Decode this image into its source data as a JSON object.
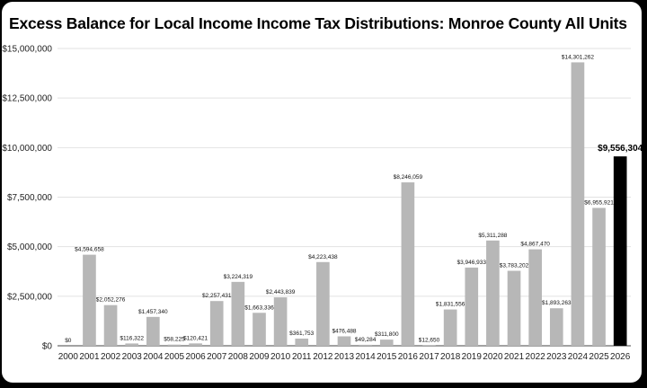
{
  "chart_data": {
    "type": "bar",
    "title": "Excess Balance for Local Income Income Tax Distributions: Monroe County All Units",
    "xlabel": "",
    "ylabel": "",
    "ylim": [
      0,
      15000000
    ],
    "yticks": [
      "$0",
      "$2,500,000",
      "$5,000,000",
      "$7,500,000",
      "$10,000,000",
      "$12,500,000",
      "$15,000,000"
    ],
    "grid": true,
    "legend": "none",
    "categories": [
      "2000",
      "2001",
      "2002",
      "2003",
      "2004",
      "2005",
      "2006",
      "2007",
      "2008",
      "2009",
      "2010",
      "2011",
      "2012",
      "2013",
      "2014",
      "2015",
      "2016",
      "2017",
      "2018",
      "2019",
      "2020",
      "2021",
      "2022",
      "2023",
      "2024",
      "2025",
      "2026"
    ],
    "values": [
      0,
      4594658,
      2052276,
      116322,
      1457340,
      58225,
      120421,
      2257431,
      3224319,
      1663336,
      2443839,
      361753,
      4223438,
      476488,
      49284,
      311800,
      8246059,
      12650,
      1831556,
      3946933,
      5311288,
      3783202,
      4867470,
      1893263,
      14301262,
      6955921,
      9556304
    ],
    "data_labels": [
      "$0",
      "$4,594,658",
      "$2,052,276",
      "$116,322",
      "$1,457,340",
      "$58,225",
      "$120,421",
      "$2,257,431",
      "$3,224,319",
      "$1,663,336",
      "$2,443,839",
      "$361,753",
      "$4,223,438",
      "$476,488",
      "$49,284",
      "$311,800",
      "$8,246,059",
      "$12,650",
      "$1,831,556",
      "$3,946,933",
      "$5,311,288",
      "$3,783,202",
      "$4,867,470",
      "$1,893,263",
      "$14,301,262",
      "$6,955,921",
      "$9,556,304"
    ],
    "highlight_category": "2026",
    "colors": {
      "bar": "#b7b7b7",
      "highlight": "#000000",
      "grid": "#e2e2e2",
      "axis": "#444444"
    }
  }
}
